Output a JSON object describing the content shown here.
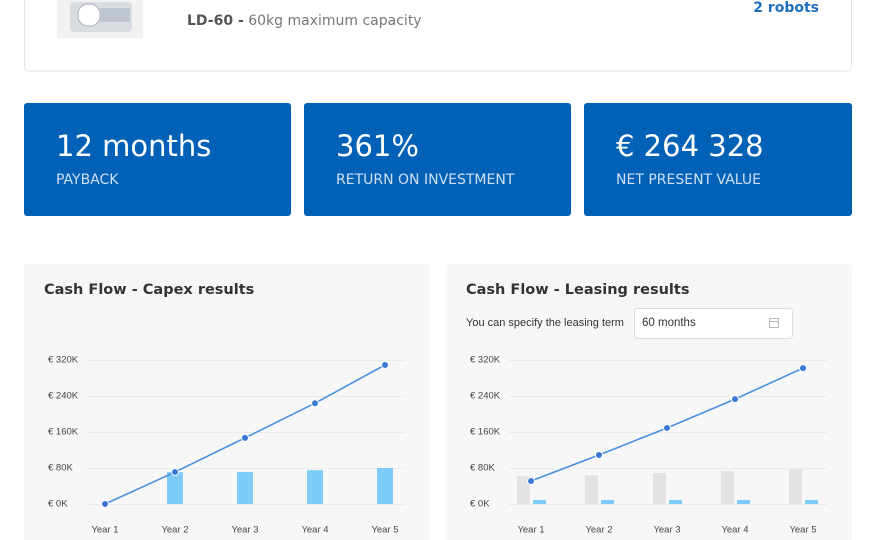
{
  "product": {
    "model": "LD-60 -",
    "description": "60kg maximum capacity",
    "count": "2 robots"
  },
  "kpis": [
    {
      "value": "12 months",
      "label": "PAYBACK"
    },
    {
      "value": "361%",
      "label": "RETURN ON INVESTMENT"
    },
    {
      "value": "€ 264 328",
      "label": "NET PRESENT VALUE"
    }
  ],
  "leasing_term": {
    "label": "You can specify the leasing term",
    "value": "60 months"
  },
  "chart_data": [
    {
      "type": "combo",
      "title": "Cash Flow - Capex results",
      "categories": [
        "Year 1",
        "Year 2",
        "Year 3",
        "Year 4",
        "Year 5"
      ],
      "series": [
        {
          "kind": "bar",
          "color": "#7ccbf9",
          "values": [
            0,
            71,
            71,
            75,
            80
          ]
        },
        {
          "kind": "line",
          "color": "#4a8fe0",
          "values": [
            0,
            71,
            147,
            224,
            309
          ]
        }
      ],
      "ylim": [
        0,
        320
      ],
      "yticks": [
        {
          "value": 0,
          "label": "€ 0K"
        },
        {
          "value": 80,
          "label": "€ 80K"
        },
        {
          "value": 160,
          "label": "€ 160K"
        },
        {
          "value": 240,
          "label": "€ 240K"
        },
        {
          "value": 320,
          "label": "€ 320K"
        }
      ],
      "grid": true
    },
    {
      "type": "combo",
      "title": "Cash Flow - Leasing results",
      "categories": [
        "Year 1",
        "Year 2",
        "Year 3",
        "Year 4",
        "Year 5"
      ],
      "series": [
        {
          "kind": "bar",
          "color": "#e3e3e3",
          "values": [
            62,
            64,
            69,
            73,
            78
          ]
        },
        {
          "kind": "bar",
          "color": "#7ccbf9",
          "values": [
            9,
            9,
            9,
            9,
            9
          ]
        },
        {
          "kind": "line",
          "color": "#4a8fe0",
          "values": [
            51,
            109,
            169,
            233,
            302
          ]
        }
      ],
      "ylim": [
        0,
        320
      ],
      "yticks": [
        {
          "value": 0,
          "label": "€ 0K"
        },
        {
          "value": 80,
          "label": "€ 80K"
        },
        {
          "value": 160,
          "label": "€ 160K"
        },
        {
          "value": 240,
          "label": "€ 240K"
        },
        {
          "value": 320,
          "label": "€ 320K"
        }
      ],
      "grid": true
    }
  ]
}
